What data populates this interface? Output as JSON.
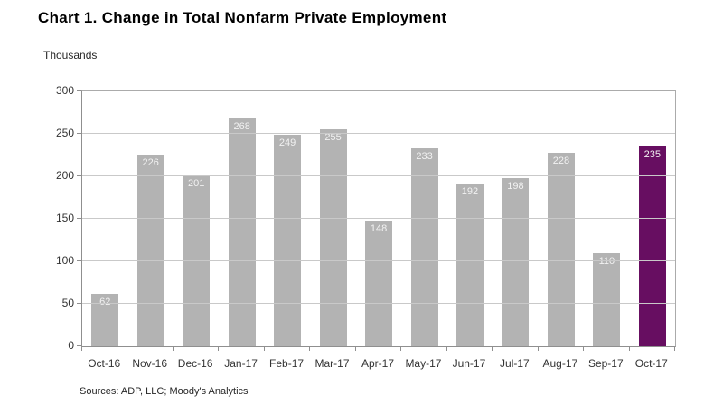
{
  "chart": {
    "title": "Chart 1. Change in Total Nonfarm Private Employment",
    "y_unit": "Thousands",
    "source": "Sources: ADP, LLC; Moody's Analytics"
  },
  "colors": {
    "bar": "#b3b3b3",
    "highlight_bar": "#670e61",
    "bar_value_label": "#f2f2f2",
    "gridline": "#c9c9c9",
    "axis": "#8f8f8f"
  },
  "chart_data": {
    "type": "bar",
    "title": "Chart 1. Change in Total Nonfarm Private Employment",
    "ylabel": "Thousands",
    "xlabel": "",
    "categories": [
      "Oct-16",
      "Nov-16",
      "Dec-16",
      "Jan-17",
      "Feb-17",
      "Mar-17",
      "Apr-17",
      "May-17",
      "Jun-17",
      "Jul-17",
      "Aug-17",
      "Sep-17",
      "Oct-17"
    ],
    "values": [
      62,
      226,
      201,
      268,
      249,
      255,
      148,
      233,
      192,
      198,
      228,
      110,
      235
    ],
    "highlight_index": 12,
    "data_labels": true,
    "ylim": [
      0,
      300
    ],
    "ytick_step": 50,
    "yticks": [
      0,
      50,
      100,
      150,
      200,
      250,
      300
    ],
    "grid": true,
    "legend": false
  }
}
